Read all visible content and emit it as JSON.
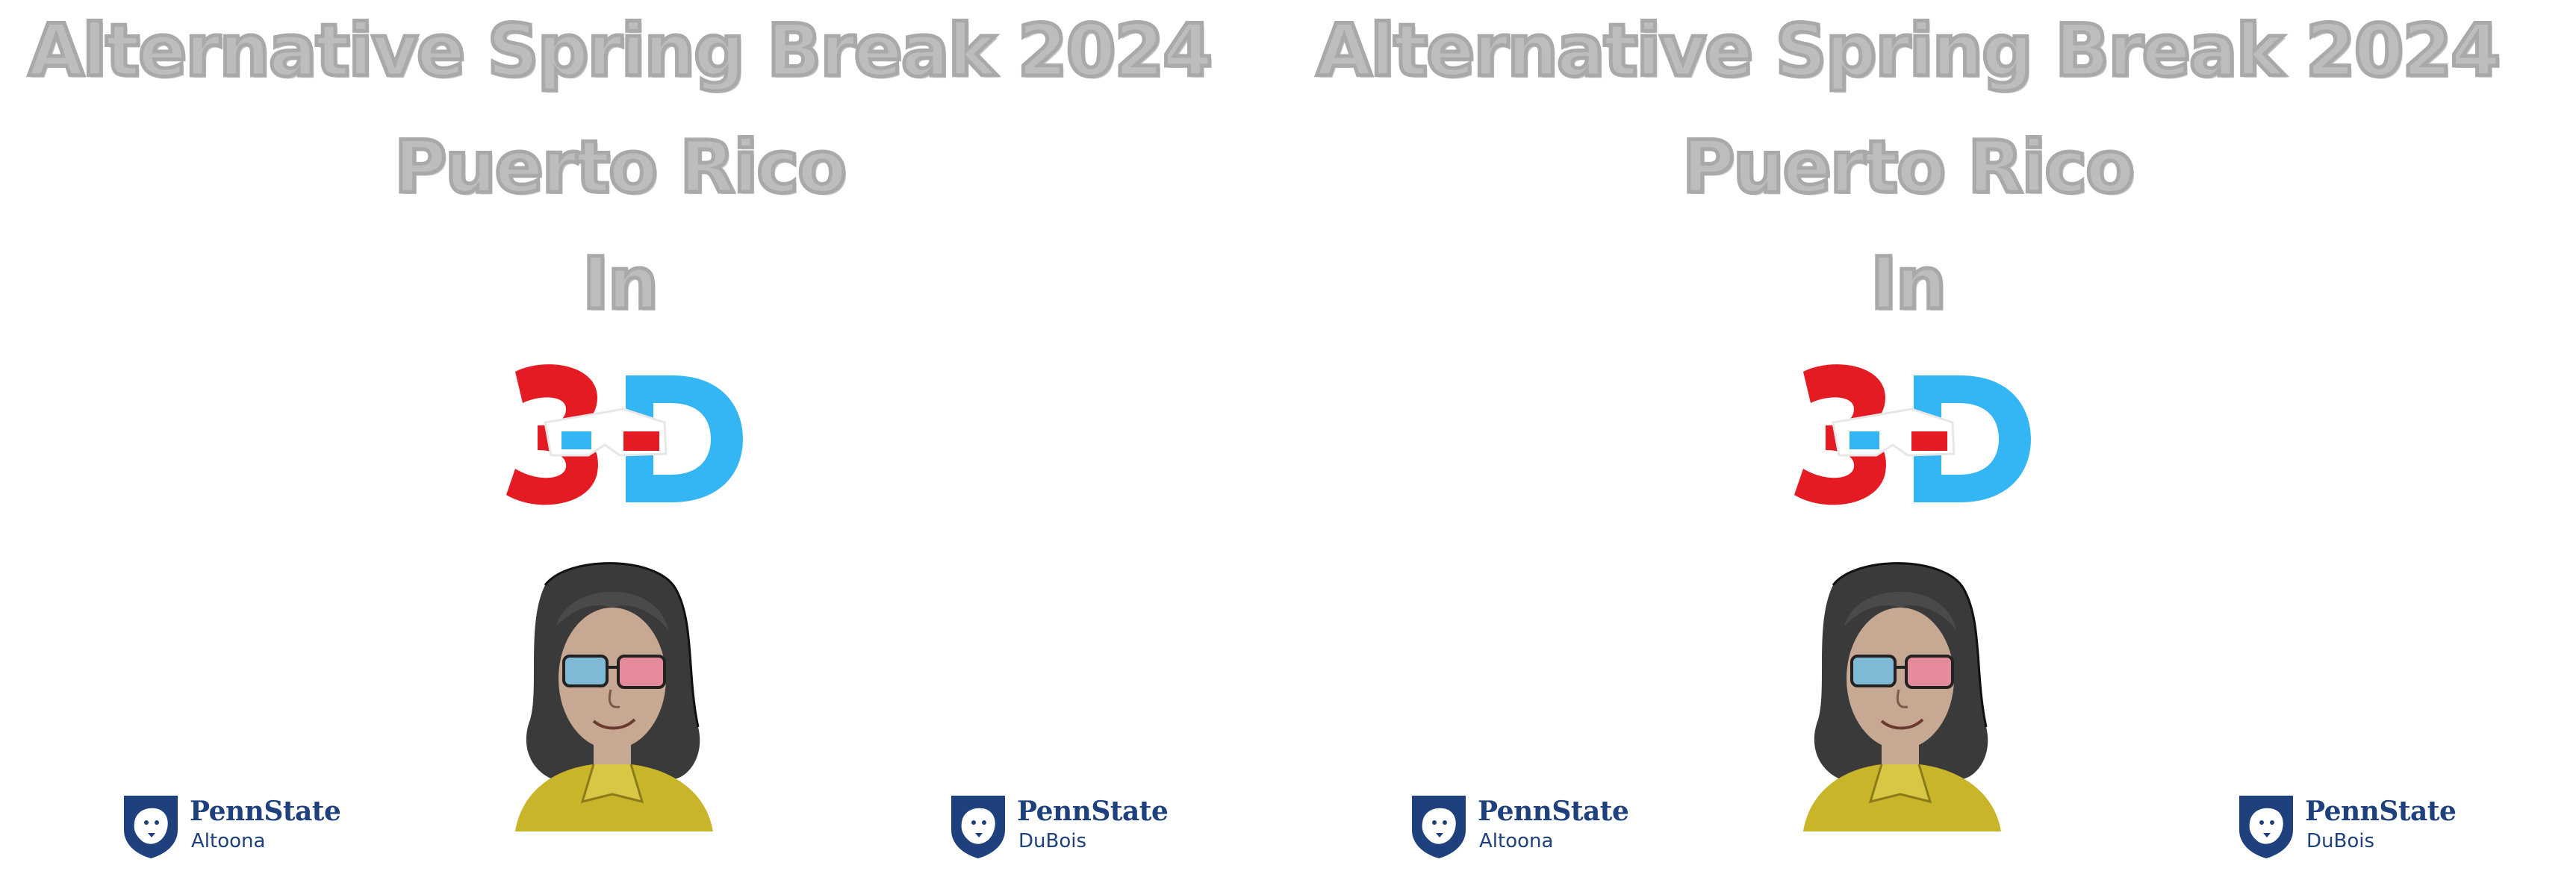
{
  "flyer": {
    "title_line1": "Alternative Spring Break 2024",
    "title_line2": "Puerto Rico",
    "title_line3": "In",
    "logo_text": "3D",
    "logo_colors": {
      "left": "#e51b23",
      "right": "#35b6f4",
      "glasses_red": "#e51b23",
      "glasses_blue": "#35b6f4"
    },
    "title_color": "#bdbdbd",
    "brand_color": "#1e407c",
    "left_logo": {
      "brand": "PennState",
      "campus": "Altoona",
      "icon": "nittany-lion-shield-icon"
    },
    "right_logo": {
      "brand": "PennState",
      "campus": "DuBois",
      "icon": "nittany-lion-shield-icon"
    },
    "illustration": "cartoon-person-with-3d-glasses"
  }
}
